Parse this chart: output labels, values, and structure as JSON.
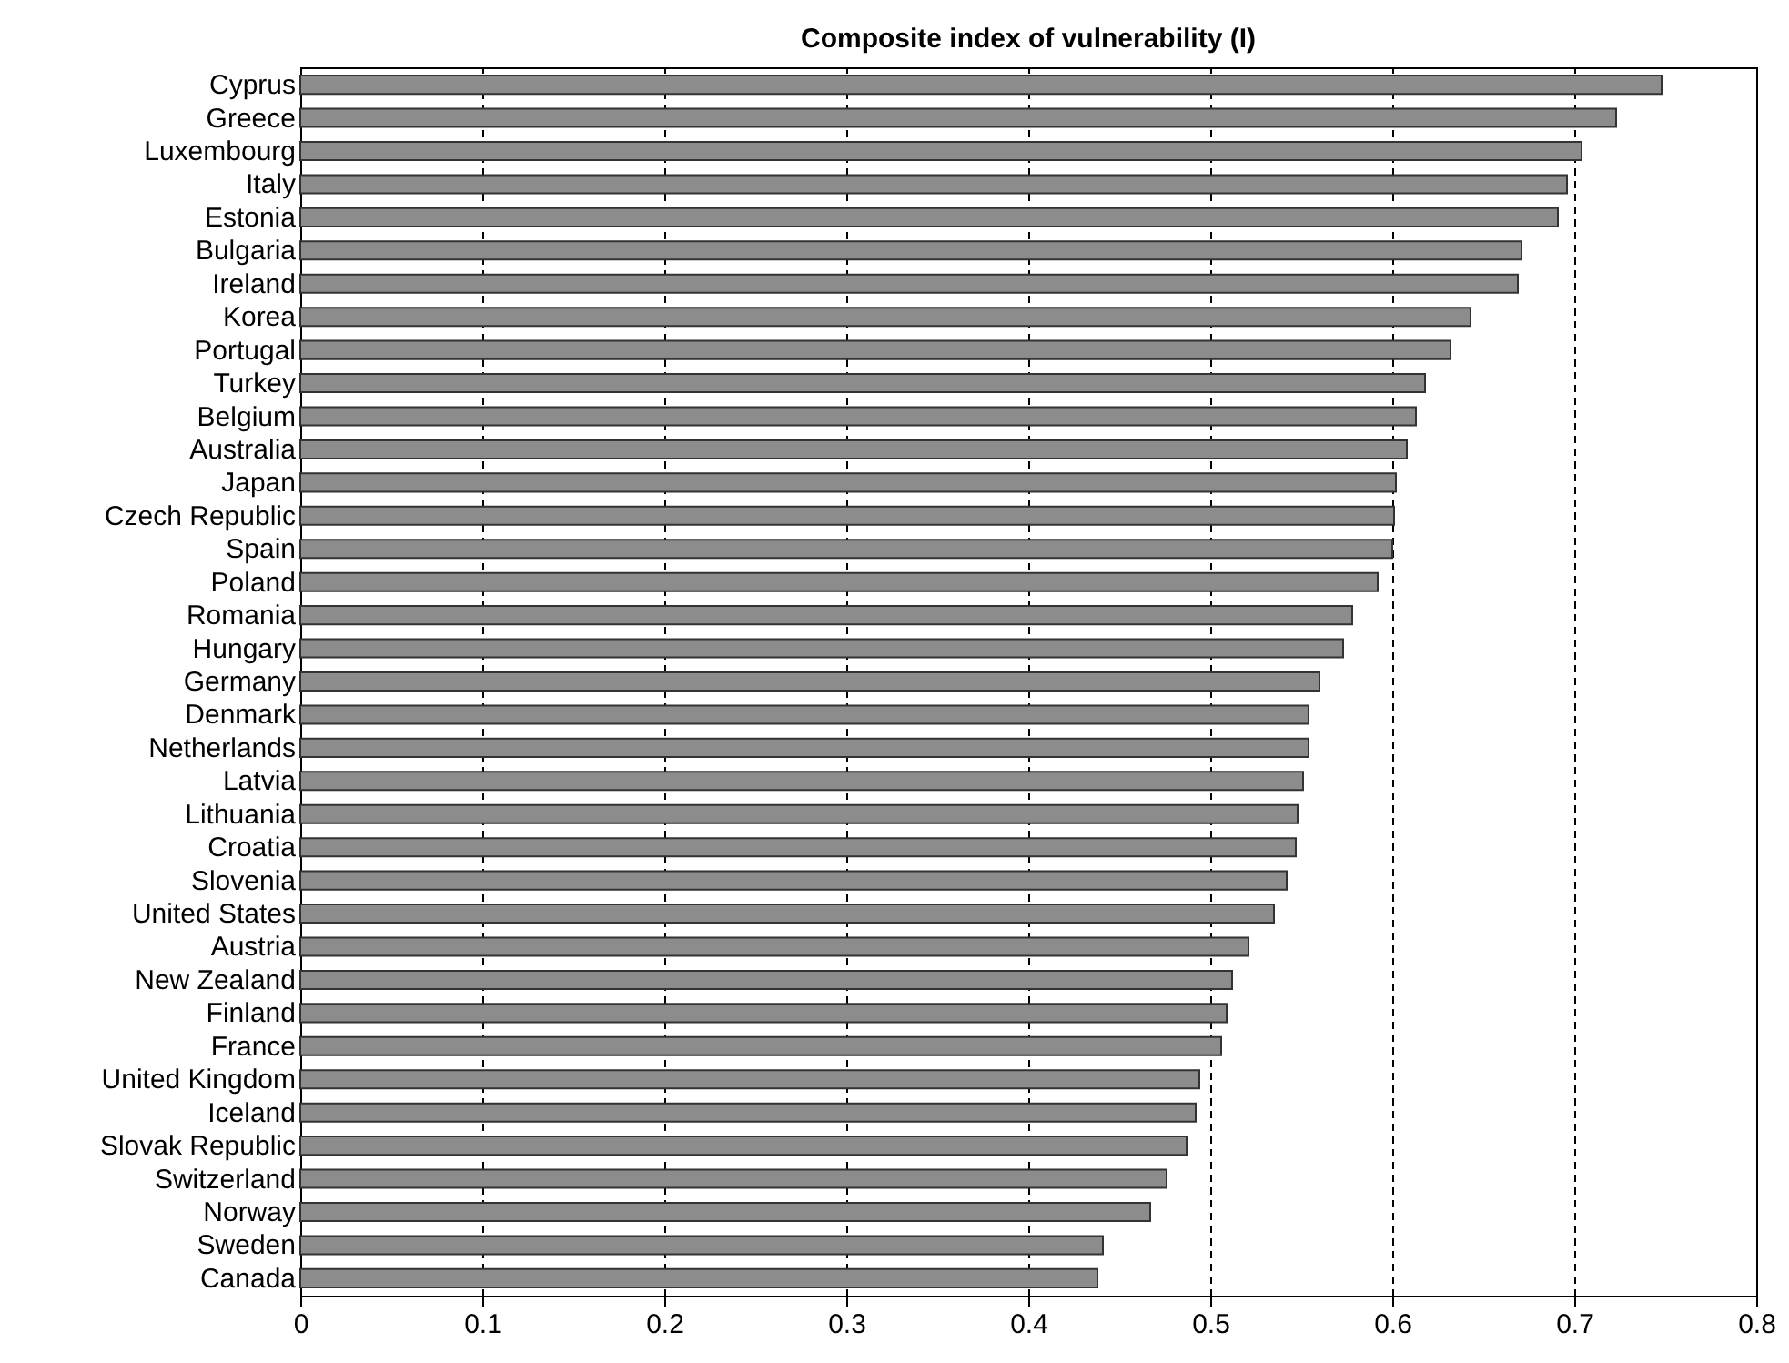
{
  "chart_data": {
    "type": "bar",
    "orientation": "horizontal",
    "title": "Composite index of vulnerability (I)",
    "categories": [
      "Cyprus",
      "Greece",
      "Luxembourg",
      "Italy",
      "Estonia",
      "Bulgaria",
      "Ireland",
      "Korea",
      "Portugal",
      "Turkey",
      "Belgium",
      "Australia",
      "Japan",
      "Czech Republic",
      "Spain",
      "Poland",
      "Romania",
      "Hungary",
      "Germany",
      "Denmark",
      "Netherlands",
      "Latvia",
      "Lithuania",
      "Croatia",
      "Slovenia",
      "United States",
      "Austria",
      "New Zealand",
      "Finland",
      "France",
      "United Kingdom",
      "Iceland",
      "Slovak Republic",
      "Switzerland",
      "Norway",
      "Sweden",
      "Canada"
    ],
    "values": [
      0.748,
      0.723,
      0.704,
      0.696,
      0.691,
      0.671,
      0.669,
      0.643,
      0.632,
      0.618,
      0.613,
      0.608,
      0.602,
      0.601,
      0.6,
      0.592,
      0.578,
      0.573,
      0.56,
      0.554,
      0.554,
      0.551,
      0.548,
      0.547,
      0.542,
      0.535,
      0.521,
      0.512,
      0.509,
      0.506,
      0.494,
      0.492,
      0.487,
      0.476,
      0.467,
      0.441,
      0.438
    ],
    "color": "#8c8c8c",
    "xlim": [
      0,
      0.8
    ],
    "xticks": [
      0,
      0.1,
      0.2,
      0.3,
      0.4,
      0.5,
      0.6,
      0.7,
      0.8
    ],
    "grid": "x"
  }
}
